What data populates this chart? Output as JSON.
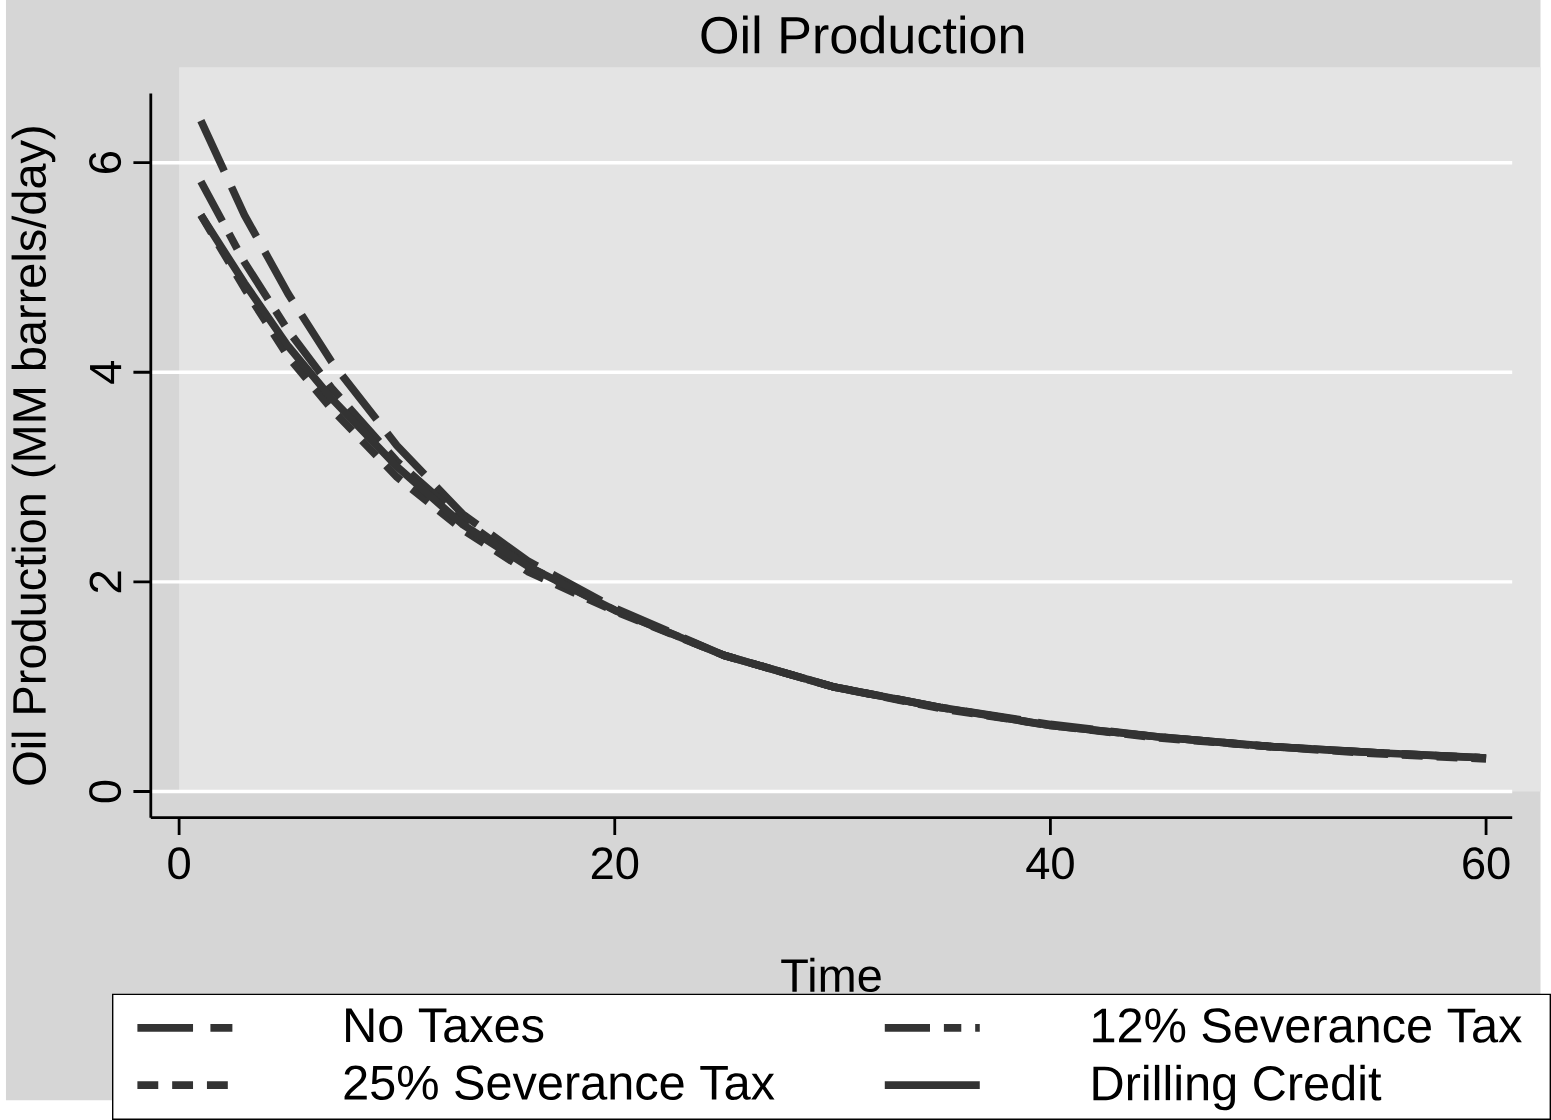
{
  "chart_data": {
    "type": "line",
    "title": "Oil Production",
    "xlabel": "Time",
    "ylabel": "Oil Production (MM barrels/day)",
    "x": [
      1,
      3,
      5,
      7,
      10,
      13,
      16,
      20,
      25,
      30,
      35,
      40,
      45,
      50,
      55,
      60
    ],
    "xlim": [
      -1.3,
      61.2
    ],
    "xticks": [
      0,
      20,
      40,
      60
    ],
    "ylim": [
      -0.25,
      6.66
    ],
    "yticks": [
      0,
      2,
      4,
      6
    ],
    "grid": "y",
    "legend": "bottom",
    "marker": "none",
    "series": [
      {
        "name": "No Taxes",
        "color": "#333333",
        "line_style": "dashed",
        "values": [
          6.4,
          5.5,
          4.75,
          4.1,
          3.3,
          2.65,
          2.2,
          1.75,
          1.3,
          1.0,
          0.8,
          0.64,
          0.52,
          0.43,
          0.37,
          0.32
        ]
      },
      {
        "name": "12% Severance Tax",
        "color": "#333333",
        "line_style": "dashed",
        "values": [
          5.82,
          5.05,
          4.4,
          3.85,
          3.15,
          2.6,
          2.15,
          1.73,
          1.3,
          1.0,
          0.8,
          0.63,
          0.52,
          0.43,
          0.37,
          0.32
        ]
      },
      {
        "name": "25% Severance Tax",
        "color": "#333333",
        "line_style": "dashed",
        "values": [
          5.5,
          4.8,
          4.15,
          3.65,
          3.0,
          2.5,
          2.1,
          1.72,
          1.3,
          1.0,
          0.79,
          0.63,
          0.51,
          0.43,
          0.36,
          0.31
        ]
      },
      {
        "name": "Drilling Credit",
        "color": "#333333",
        "line_style": "solid",
        "values": [
          5.5,
          4.85,
          4.25,
          3.75,
          3.1,
          2.55,
          2.15,
          1.73,
          1.3,
          1.0,
          0.8,
          0.63,
          0.52,
          0.43,
          0.37,
          0.32
        ]
      }
    ]
  }
}
